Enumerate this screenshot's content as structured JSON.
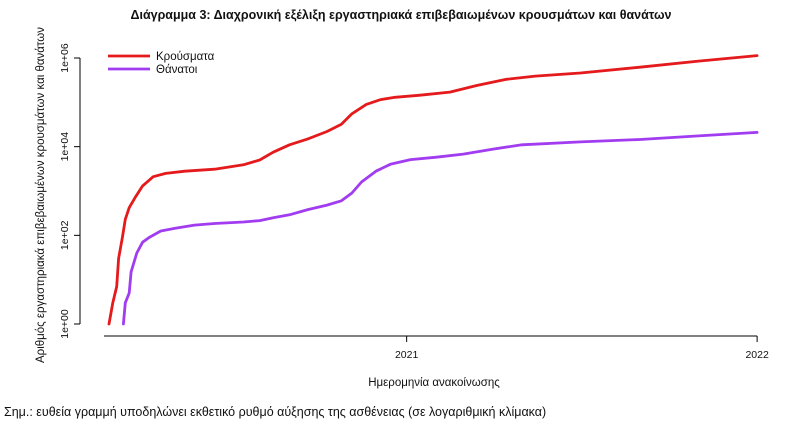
{
  "chart_data": {
    "type": "line",
    "title": "Διάγραμμα 3: Διαχρονική εξέλιξη εργαστηριακά επιβεβαιωμένων κρουσμάτων και θανάτων",
    "xlabel": "Ημερομηνία ανακοίνωσης",
    "ylabel": "Αριθμός εργαστηριακά επιβεβαιωμένων κρουσμάτων και θανάτων",
    "yscale": "log",
    "ylim": [
      1,
      1000000
    ],
    "xlim": [
      "2020-02-26",
      "2022-01-04"
    ],
    "x_ticks": [
      {
        "date": "2021-01-01",
        "label": "2021"
      },
      {
        "date": "2022-01-01",
        "label": "2022"
      }
    ],
    "y_ticks": [
      {
        "value": 1,
        "label": "1e+00"
      },
      {
        "value": 100,
        "label": "1e+02"
      },
      {
        "value": 10000,
        "label": "1e+04"
      },
      {
        "value": 1000000,
        "label": "1e+06"
      }
    ],
    "grid": false,
    "legend_position": "top-left",
    "series": [
      {
        "name": "Κρούσματα",
        "color": "#e41a1c",
        "points": [
          [
            "2020-02-26",
            1
          ],
          [
            "2020-03-01",
            3
          ],
          [
            "2020-03-05",
            7
          ],
          [
            "2020-03-07",
            30
          ],
          [
            "2020-03-11",
            90
          ],
          [
            "2020-03-14",
            230
          ],
          [
            "2020-03-18",
            420
          ],
          [
            "2020-03-24",
            700
          ],
          [
            "2020-04-01",
            1300
          ],
          [
            "2020-04-12",
            2100
          ],
          [
            "2020-04-25",
            2500
          ],
          [
            "2020-05-15",
            2800
          ],
          [
            "2020-06-15",
            3100
          ],
          [
            "2020-07-15",
            3900
          ],
          [
            "2020-08-01",
            5000
          ],
          [
            "2020-08-15",
            7500
          ],
          [
            "2020-09-01",
            11000
          ],
          [
            "2020-09-20",
            15000
          ],
          [
            "2020-10-10",
            22000
          ],
          [
            "2020-10-25",
            32000
          ],
          [
            "2020-11-05",
            55000
          ],
          [
            "2020-11-20",
            90000
          ],
          [
            "2020-12-05",
            115000
          ],
          [
            "2020-12-20",
            130000
          ],
          [
            "2021-01-15",
            145000
          ],
          [
            "2021-02-15",
            170000
          ],
          [
            "2021-03-15",
            240000
          ],
          [
            "2021-04-15",
            330000
          ],
          [
            "2021-05-15",
            390000
          ],
          [
            "2021-07-01",
            460000
          ],
          [
            "2021-09-01",
            620000
          ],
          [
            "2021-11-01",
            850000
          ],
          [
            "2022-01-01",
            1130000
          ]
        ]
      },
      {
        "name": "Θάνατοι",
        "color": "#a13cf0",
        "points": [
          [
            "2020-03-12",
            1
          ],
          [
            "2020-03-14",
            3
          ],
          [
            "2020-03-18",
            5
          ],
          [
            "2020-03-20",
            15
          ],
          [
            "2020-03-26",
            40
          ],
          [
            "2020-04-01",
            70
          ],
          [
            "2020-04-08",
            90
          ],
          [
            "2020-04-20",
            125
          ],
          [
            "2020-05-05",
            145
          ],
          [
            "2020-05-25",
            170
          ],
          [
            "2020-06-15",
            185
          ],
          [
            "2020-07-15",
            200
          ],
          [
            "2020-08-01",
            215
          ],
          [
            "2020-08-15",
            250
          ],
          [
            "2020-09-01",
            290
          ],
          [
            "2020-09-20",
            380
          ],
          [
            "2020-10-10",
            480
          ],
          [
            "2020-10-25",
            600
          ],
          [
            "2020-11-05",
            900
          ],
          [
            "2020-11-15",
            1600
          ],
          [
            "2020-11-30",
            2800
          ],
          [
            "2020-12-15",
            4000
          ],
          [
            "2021-01-05",
            5100
          ],
          [
            "2021-02-01",
            5800
          ],
          [
            "2021-03-01",
            6800
          ],
          [
            "2021-04-01",
            8800
          ],
          [
            "2021-05-01",
            11000
          ],
          [
            "2021-07-01",
            12800
          ],
          [
            "2021-09-01",
            14500
          ],
          [
            "2021-11-01",
            17500
          ],
          [
            "2022-01-01",
            21000
          ]
        ]
      }
    ]
  },
  "note": "Σημ.: ευθεία γραμμή υποδηλώνει εκθετικό ρυθμό αύξησης της ασθένειας (σε λογαριθμική κλίμακα)"
}
